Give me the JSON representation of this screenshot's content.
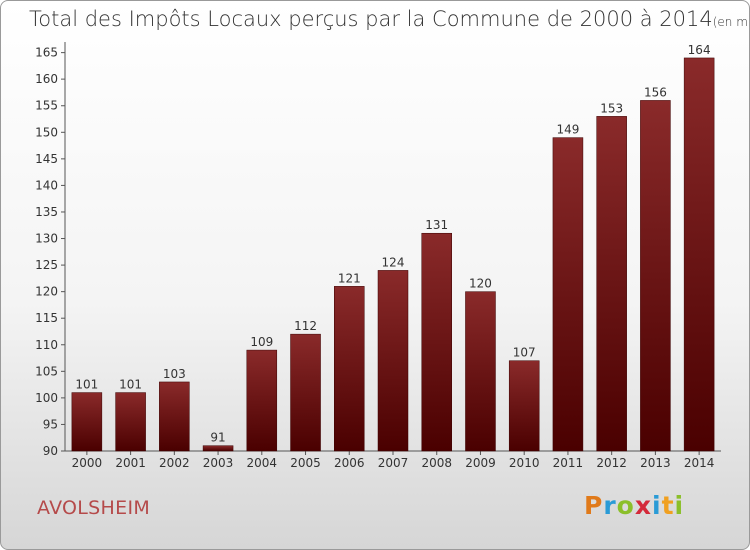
{
  "chart_data": {
    "type": "bar",
    "title": "Total des Impôts Locaux perçus par la Commune de 2000 à 2014",
    "subtitle": "(en milliers d'€)",
    "xlabel": "",
    "ylabel": "",
    "categories": [
      "2000",
      "2001",
      "2002",
      "2003",
      "2004",
      "2005",
      "2006",
      "2007",
      "2008",
      "2009",
      "2010",
      "2011",
      "2012",
      "2013",
      "2014"
    ],
    "values": [
      101,
      101,
      103,
      91,
      109,
      112,
      121,
      124,
      131,
      120,
      107,
      149,
      153,
      156,
      164
    ],
    "ylim": [
      90,
      167
    ],
    "yticks": [
      90,
      95,
      100,
      105,
      110,
      115,
      120,
      125,
      130,
      135,
      140,
      145,
      150,
      155,
      160,
      165
    ],
    "grid": false,
    "bar_color": "#7a1a1a",
    "bar_color_dark": "#4a0000"
  },
  "footer": {
    "commune": "AVOLSHEIM",
    "brand_letters": [
      "P",
      "r",
      "o",
      "x",
      "i",
      "t",
      "i"
    ],
    "brand_colors": [
      "#e07a1a",
      "#2a9bd6",
      "#8bbf2a",
      "#d42a3a",
      "#2a9bd6",
      "#f0a020",
      "#8bbf2a"
    ]
  }
}
